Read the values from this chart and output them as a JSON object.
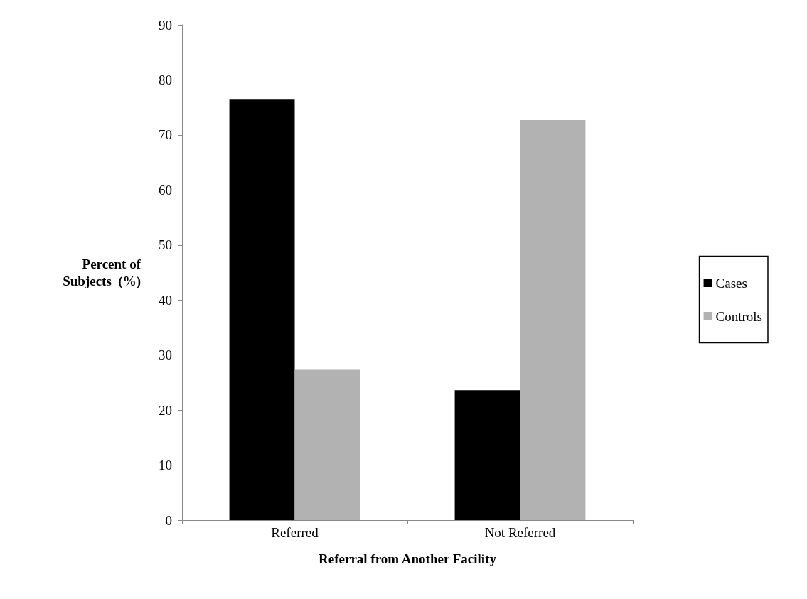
{
  "chart_data": {
    "type": "bar",
    "xlabel": "Referral from Another Facility",
    "ylabel": "Percent of\nSubjects  (%)",
    "categories": [
      "Referred",
      "Not Referred"
    ],
    "series": [
      {
        "name": "Cases",
        "color": "#000000",
        "values": [
          76.4,
          23.6
        ]
      },
      {
        "name": "Controls",
        "color": "#b2b2b2",
        "values": [
          27.3,
          72.7
        ]
      }
    ],
    "ylim": [
      0,
      90
    ],
    "yticks": [
      0,
      10,
      20,
      30,
      40,
      50,
      60,
      70,
      80,
      90
    ],
    "grid": false,
    "legend": "right"
  }
}
